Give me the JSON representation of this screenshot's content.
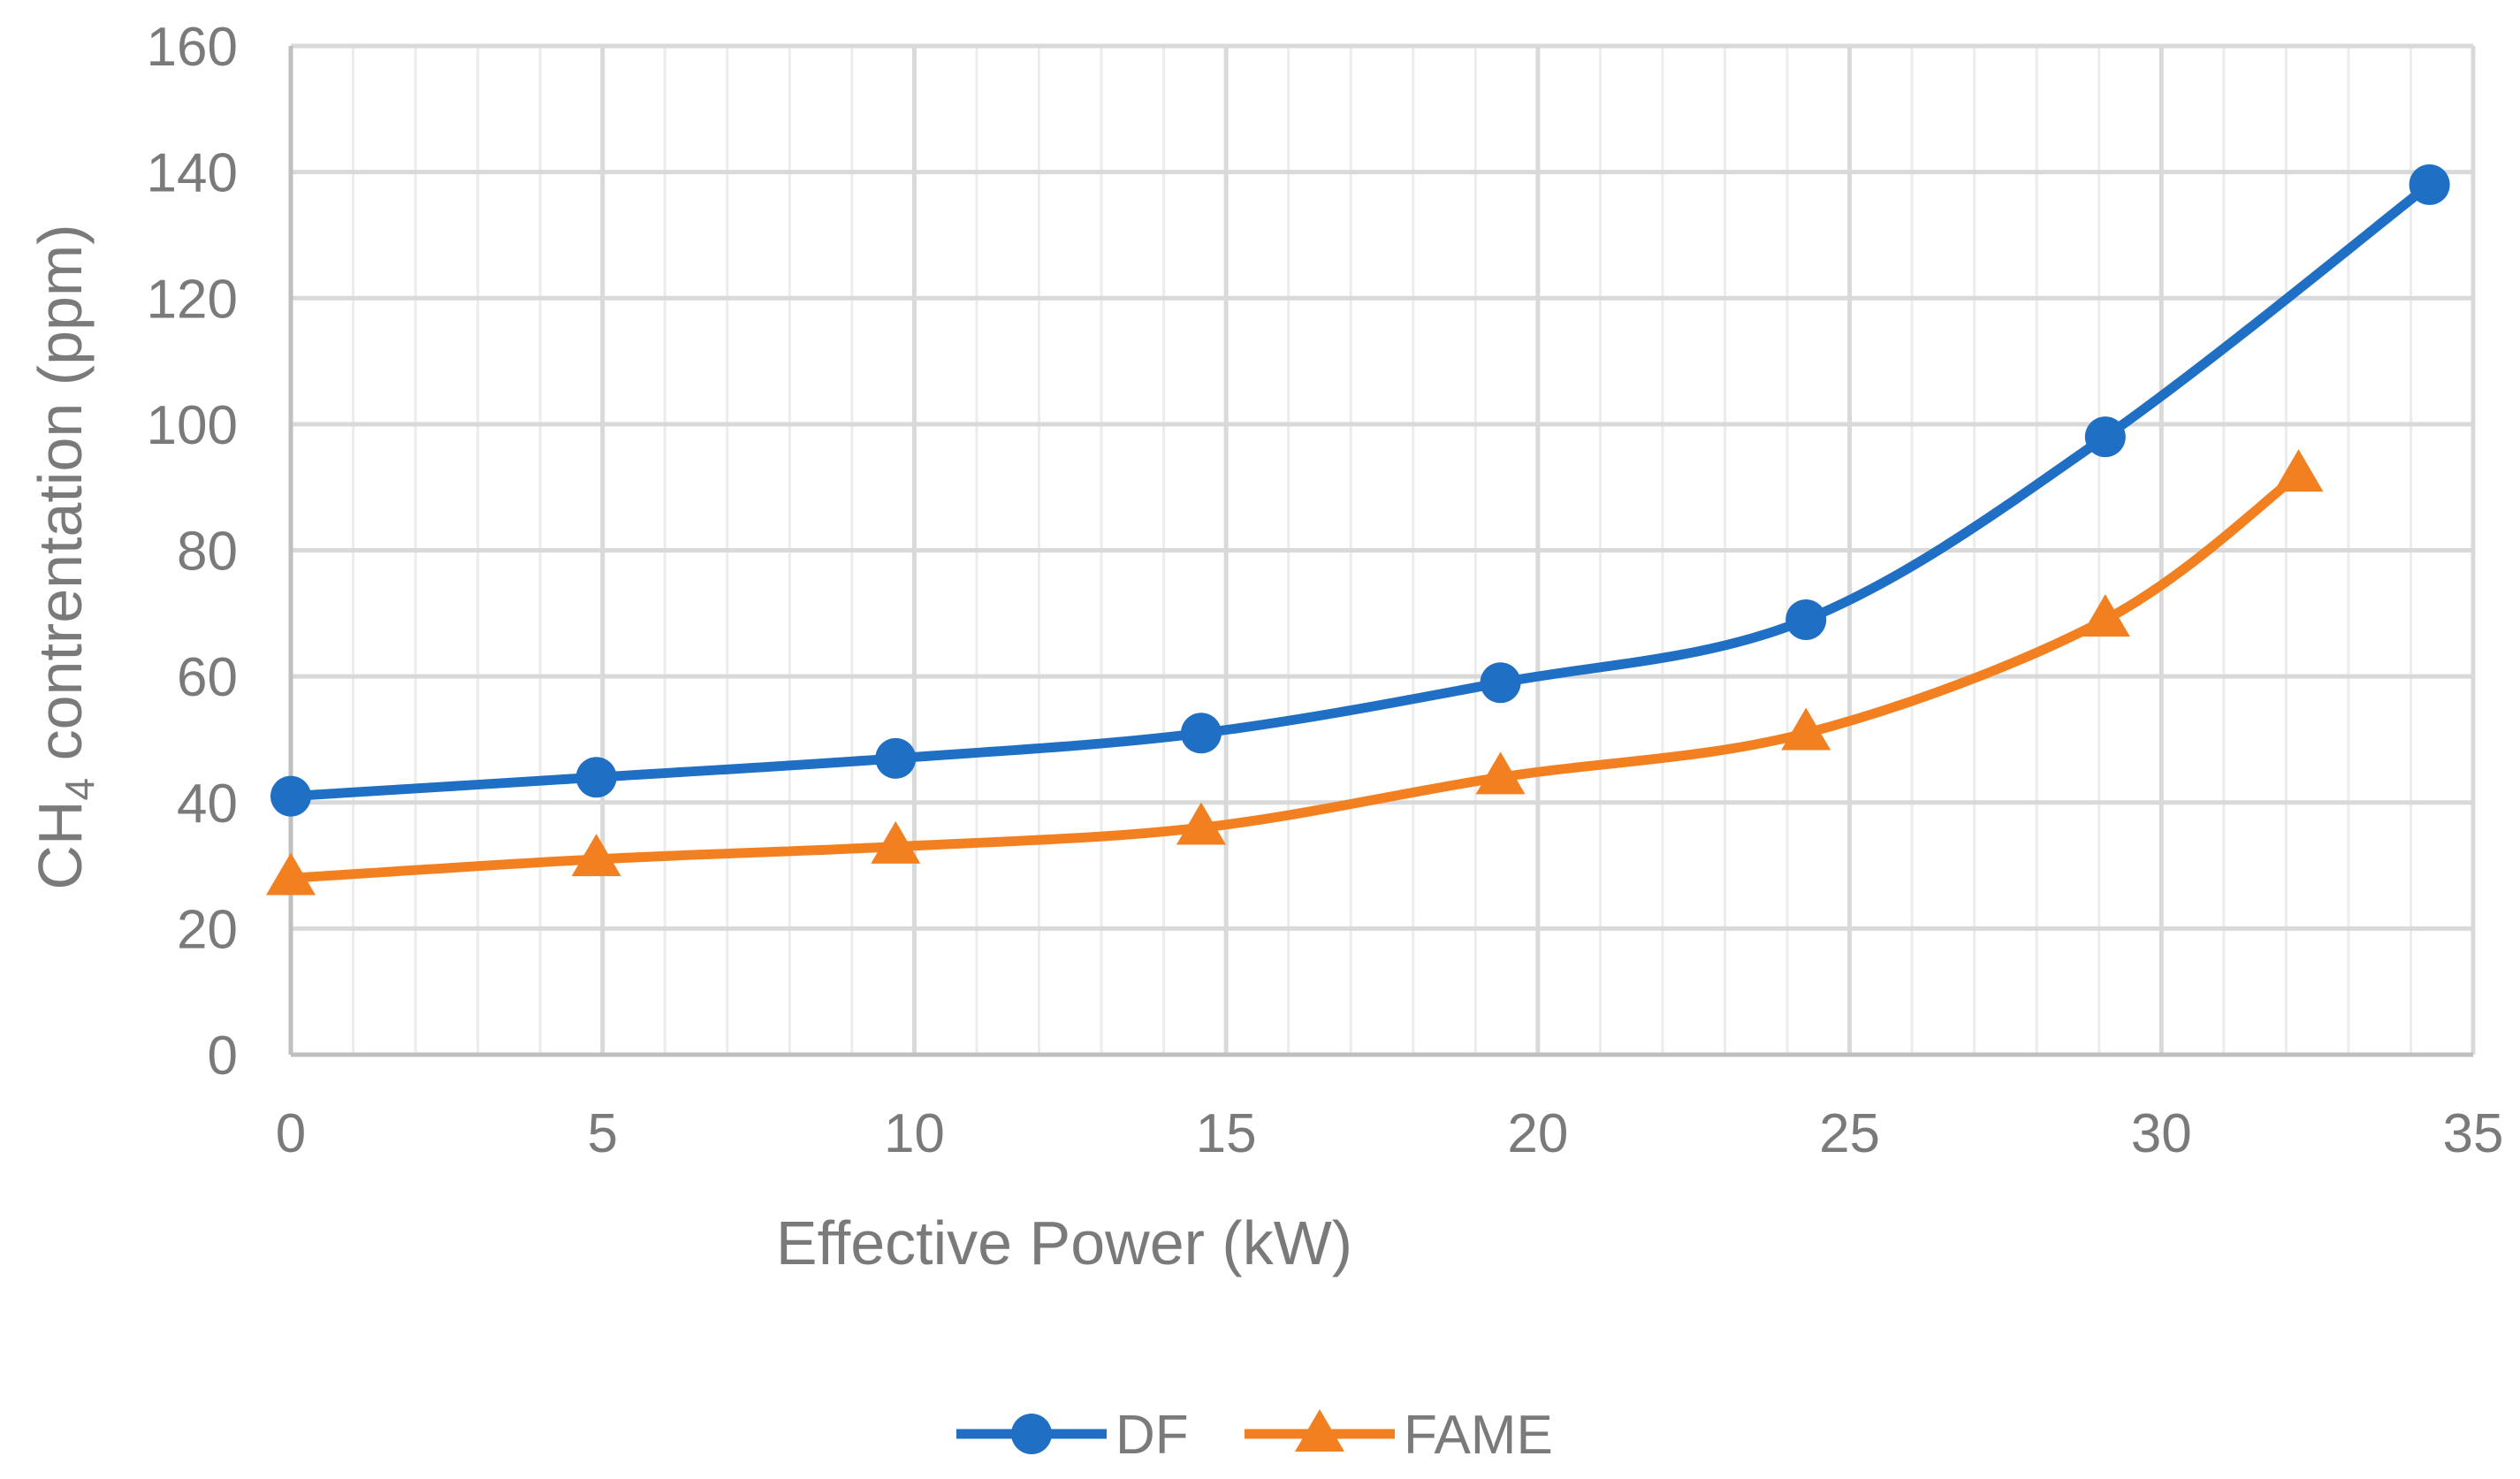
{
  "chart_data": {
    "type": "line",
    "title": "",
    "xlabel": "Effective Power (kW)",
    "ylabel_main": "CH",
    "ylabel_sub": "4",
    "ylabel_rest": " contrentation (ppm)",
    "xlim": [
      0,
      35
    ],
    "ylim": [
      0,
      160
    ],
    "x_ticks": [
      "0",
      "5",
      "10",
      "15",
      "20",
      "25",
      "30",
      "35"
    ],
    "y_ticks": [
      "0",
      "20",
      "40",
      "60",
      "80",
      "100",
      "120",
      "140",
      "160"
    ],
    "grid": true,
    "minor_x_grid_step": 1,
    "legend_position": "bottom-center",
    "series": [
      {
        "name": "DF",
        "color": "#1f6fc5",
        "marker": "circle",
        "x": [
          0,
          4.9,
          9.7,
          14.6,
          19.4,
          24.3,
          29.1,
          34.3
        ],
        "y": [
          41,
          44,
          47,
          51,
          59,
          69,
          98,
          138
        ]
      },
      {
        "name": "FAME",
        "color": "#f28020",
        "marker": "triangle",
        "x": [
          0,
          4.9,
          9.7,
          14.6,
          19.4,
          24.3,
          29.1,
          32.2
        ],
        "y": [
          28,
          31,
          33,
          36,
          44,
          51,
          69,
          92
        ]
      }
    ]
  }
}
